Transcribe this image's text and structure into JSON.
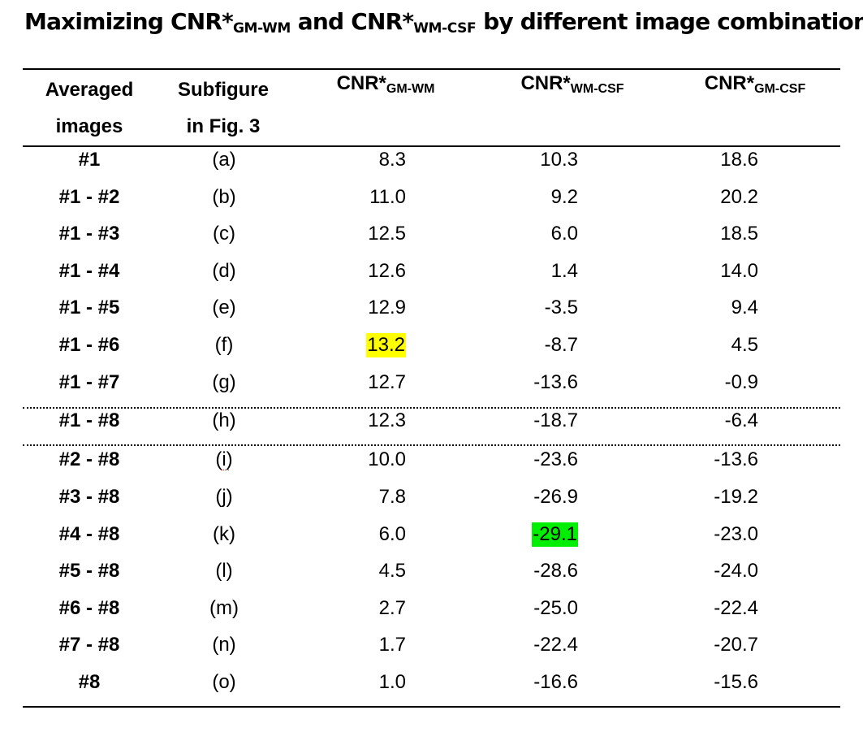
{
  "title": {
    "pre": "Maximizing CNR*",
    "sub1": "GM-WM",
    "mid": " and CNR*",
    "sub2": "WM-CSF",
    "post": " by different image combinations"
  },
  "headers": {
    "col0_line1": "Averaged",
    "col0_line2": "images",
    "col1_line1": "Subfigure",
    "col1_line2": "in Fig. 3",
    "col2_main": "CNR*",
    "col2_sub": "GM-WM",
    "col3_main": "CNR*",
    "col3_sub": "WM-CSF",
    "col4_main": "CNR*",
    "col4_sub": "GM-CSF"
  },
  "rows": [
    {
      "images": "#1",
      "subfigure": "(a)",
      "gm_wm": "8.3",
      "wm_csf": "10.3",
      "gm_csf": "18.6"
    },
    {
      "images": "#1 - #2",
      "subfigure": "(b)",
      "gm_wm": "11.0",
      "wm_csf": "9.2",
      "gm_csf": "20.2"
    },
    {
      "images": "#1 - #3",
      "subfigure": "(c)",
      "gm_wm": "12.5",
      "wm_csf": "6.0",
      "gm_csf": "18.5"
    },
    {
      "images": "#1 - #4",
      "subfigure": "(d)",
      "gm_wm": "12.6",
      "wm_csf": "1.4",
      "gm_csf": "14.0"
    },
    {
      "images": "#1 - #5",
      "subfigure": "(e)",
      "gm_wm": "12.9",
      "wm_csf": "-3.5",
      "gm_csf": "9.4"
    },
    {
      "images": "#1 - #6",
      "subfigure": "(f)",
      "gm_wm": "13.2",
      "wm_csf": "-8.7",
      "gm_csf": "4.5"
    },
    {
      "images": "#1 - #7",
      "subfigure": "(g)",
      "gm_wm": "12.7",
      "wm_csf": "-13.6",
      "gm_csf": "-0.9"
    },
    {
      "images": "#1 - #8",
      "subfigure": "(h)",
      "gm_wm": "12.3",
      "wm_csf": "-18.7",
      "gm_csf": "-6.4"
    },
    {
      "images": "#2 - #8",
      "subfigure": "(i)",
      "gm_wm": "10.0",
      "wm_csf": "-23.6",
      "gm_csf": "-13.6"
    },
    {
      "images": "#3 - #8",
      "subfigure": "(j)",
      "gm_wm": "7.8",
      "wm_csf": "-26.9",
      "gm_csf": "-19.2"
    },
    {
      "images": "#4 - #8",
      "subfigure": "(k)",
      "gm_wm": "6.0",
      "wm_csf": "-29.1",
      "gm_csf": "-23.0"
    },
    {
      "images": "#5 - #8",
      "subfigure": "(l)",
      "gm_wm": "4.5",
      "wm_csf": "-28.6",
      "gm_csf": "-24.0"
    },
    {
      "images": "#6 - #8",
      "subfigure": "(m)",
      "gm_wm": "2.7",
      "wm_csf": "-25.0",
      "gm_csf": "-22.4"
    },
    {
      "images": "#7 - #8",
      "subfigure": "(n)",
      "gm_wm": "1.7",
      "wm_csf": "-22.4",
      "gm_csf": "-20.7"
    },
    {
      "images": "#8",
      "subfigure": "(o)",
      "gm_wm": "1.0",
      "wm_csf": "-16.6",
      "gm_csf": "-15.6"
    }
  ],
  "highlights": {
    "max_gm_wm_color": "#ffff00",
    "max_wm_csf_color": "#00ee00"
  }
}
